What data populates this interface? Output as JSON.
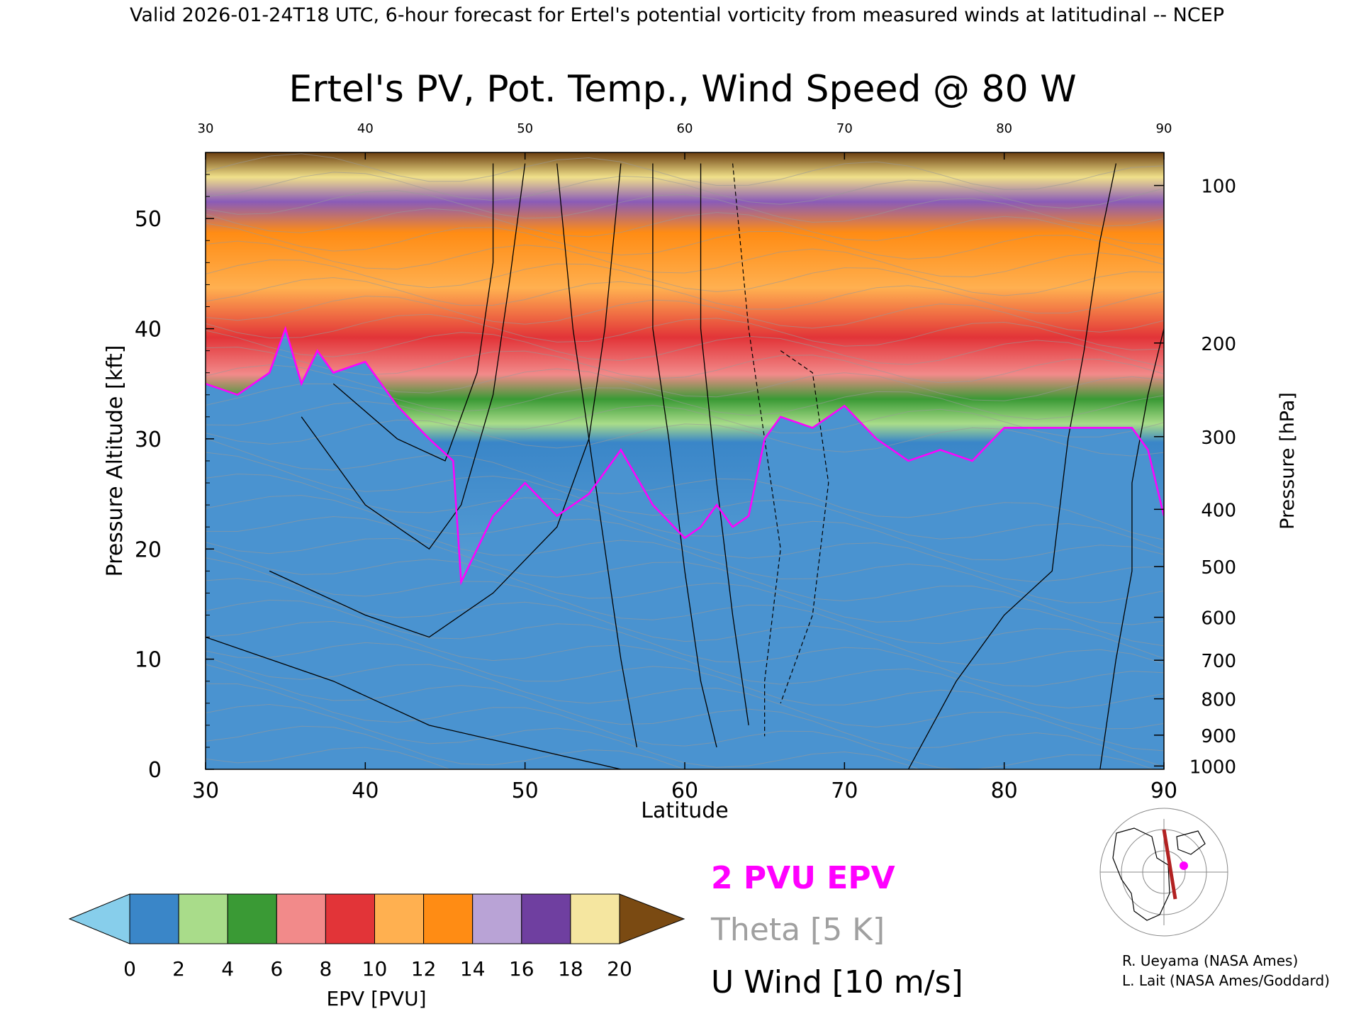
{
  "header": "Valid 2026-01-24T18 UTC, 6-hour forecast for Ertel's potential vorticity from measured winds at latitudinal -- NCEP",
  "chart_data": {
    "type": "heatmap",
    "title": "Ertel's PV, Pot. Temp., Wind Speed @ 80 W",
    "xlabel": "Latitude",
    "ylabel": "Pressure Altitude [kft]",
    "y2label": "Pressure [hPa]",
    "xlim": [
      30,
      90
    ],
    "ylim": [
      0,
      56
    ],
    "x_ticks": [
      30,
      40,
      50,
      60,
      70,
      80,
      90
    ],
    "y_ticks": [
      0,
      10,
      20,
      30,
      40,
      50
    ],
    "pressure_ticks": [
      {
        "label": "100",
        "kft": 53.0
      },
      {
        "label": "200",
        "kft": 38.7
      },
      {
        "label": "300",
        "kft": 30.2
      },
      {
        "label": "400",
        "kft": 23.6
      },
      {
        "label": "500",
        "kft": 18.4
      },
      {
        "label": "600",
        "kft": 13.8
      },
      {
        "label": "700",
        "kft": 9.9
      },
      {
        "label": "800",
        "kft": 6.4
      },
      {
        "label": "900",
        "kft": 3.1
      },
      {
        "label": "1000",
        "kft": 0.3
      }
    ],
    "two_pvu_contour": {
      "lat": [
        30,
        32,
        34,
        35,
        36,
        37,
        38,
        40,
        42,
        44,
        45.5,
        46,
        48,
        50,
        52,
        54,
        56,
        58,
        60,
        61,
        62,
        63,
        64,
        65,
        66,
        68,
        70,
        72,
        74,
        76,
        78,
        80,
        82,
        84,
        86,
        88,
        89,
        90
      ],
      "kft": [
        35,
        34,
        36,
        40,
        35,
        38,
        36,
        37,
        33,
        30,
        28,
        17,
        23,
        26,
        23,
        25,
        29,
        24,
        21,
        22,
        24,
        22,
        23,
        30,
        32,
        31,
        33,
        30,
        28,
        29,
        28,
        31,
        31,
        31,
        31,
        31,
        29,
        23
      ]
    },
    "colorbar": {
      "label": "EPV [PVU]",
      "ticks": [
        "0",
        "2",
        "4",
        "6",
        "8",
        "10",
        "12",
        "14",
        "16",
        "18",
        "20"
      ],
      "colors": [
        "#87ceeb",
        "#3a86c8",
        "#a9dc8a",
        "#3a9a35",
        "#f28a8a",
        "#e23438",
        "#ffb050",
        "#ff8c14",
        "#b9a3d6",
        "#6f3fa0",
        "#f5e6a0",
        "#7a4a12"
      ]
    },
    "legend": [
      {
        "text": "2 PVU EPV",
        "color": "#ff00ff"
      },
      {
        "text": "Theta [5 K]",
        "color": "#a0a0a0"
      },
      {
        "text": "U Wind [10 m/s]",
        "color": "#000000"
      }
    ]
  },
  "credits": [
    "R. Ueyama (NASA Ames)",
    "L. Lait (NASA Ames/Goddard)"
  ]
}
